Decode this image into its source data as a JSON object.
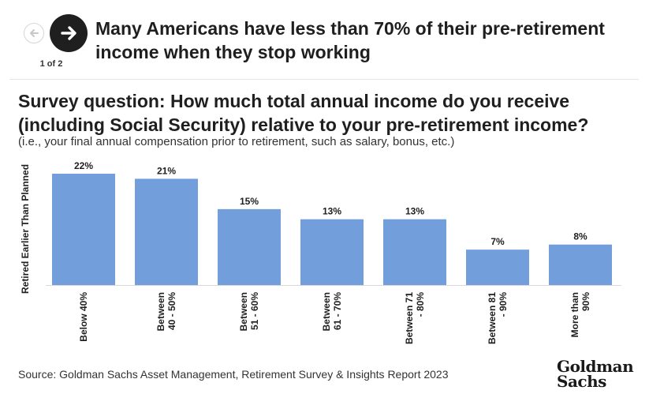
{
  "header": {
    "prev_icon": "arrow-left-icon",
    "next_icon": "arrow-right-icon",
    "pager": "1 of 2",
    "headline": "Many Americans have less than 70% of their pre-retirement income when they stop working"
  },
  "chart_data": {
    "type": "bar",
    "title": "Survey question: How much total annual income do you receive (including Social Security) relative to your pre-retirement income?",
    "subtitle": "(i.e., your final annual compensation prior to retirement, such as salary, bonus, etc.)",
    "ylabel": "Retired Earlier Than Planned",
    "categories": [
      [
        "Below 40%"
      ],
      [
        "Between",
        "40 - 50%"
      ],
      [
        "Between",
        "51 - 60%"
      ],
      [
        "Between",
        "61 - 70%"
      ],
      [
        "Between 71",
        "- 80%"
      ],
      [
        "Between 81",
        "- 90%"
      ],
      [
        "More than",
        "90%"
      ]
    ],
    "values": [
      22,
      21,
      15,
      13,
      13,
      7,
      8
    ],
    "value_labels": [
      "22%",
      "21%",
      "15%",
      "13%",
      "13%",
      "7%",
      "8%"
    ],
    "ylim": [
      0,
      22
    ],
    "bar_color": "#729fdc",
    "grid": false,
    "legend": "none"
  },
  "footer": {
    "source": "Source: Goldman Sachs Asset Management, Retirement Survey & Insights Report 2023",
    "logo_line1": "Goldman",
    "logo_line2": "Sachs"
  }
}
